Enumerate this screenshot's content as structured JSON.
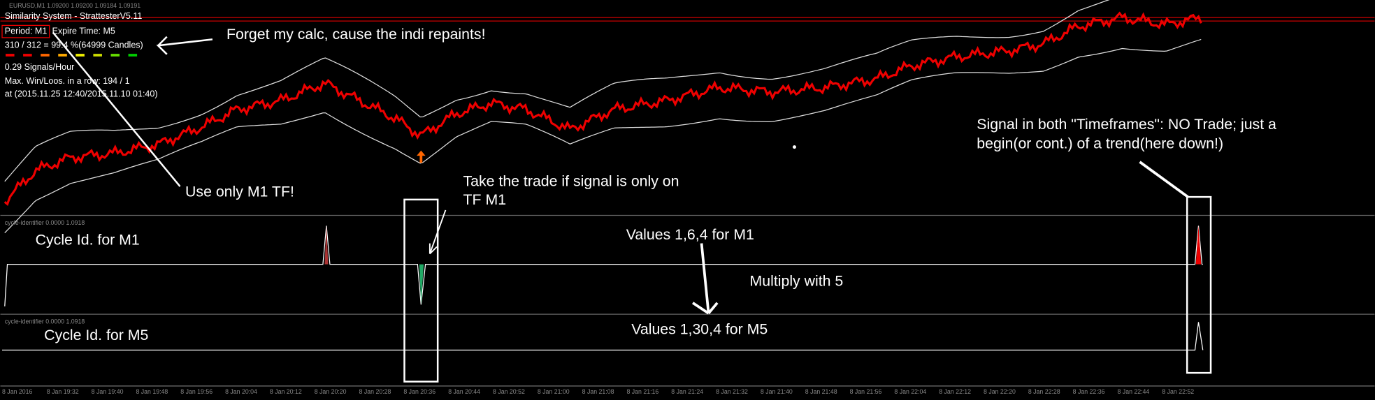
{
  "header": {
    "symbol": "EURUSD,M1  1.09200 1.09200 1.09184 1.09191"
  },
  "info_panel": {
    "title": "Similarity System - StrattesterV5.11",
    "period": "Period: M1",
    "expire": "Expire Time: M5",
    "ratio": "310 / 312 = 99.4 %(64999 Candles)",
    "signals": "0.29 Signals/Hour",
    "streak": "Max. Win/Loos. in a row: 194 / 1",
    "range": "at  (2015.11.25 12:40/2015.11.10 01:40)"
  },
  "annotations": {
    "repaint": "Forget my calc, cause the indi repaints!",
    "use_m1": "Use only M1 TF!",
    "take_trade": [
      "Take the trade if signal is only on",
      "TF M1"
    ],
    "both_signal": [
      "Signal in both \"Timeframes\": NO Trade; just a",
      "begin(or cont.) of a trend(here down!)"
    ],
    "cycle_m1": "Cycle Id. for M1",
    "values_m1": "Values 1,6,4 for M1",
    "multiply": "Multiply with 5",
    "cycle_m5": "Cycle Id. for M5",
    "values_m5": "Values 1,30,4 for M5"
  },
  "subwindows": [
    "cycle-identifier 0.0000 1.0918",
    "cycle-identifier 0.0000 1.0918"
  ],
  "time_axis": [
    "8 Jan 2016",
    "8 Jan 19:32",
    "8 Jan 19:40",
    "8 Jan 19:48",
    "8 Jan 19:56",
    "8 Jan 20:04",
    "8 Jan 20:12",
    "8 Jan 20:20",
    "8 Jan 20:28",
    "8 Jan 20:36",
    "8 Jan 20:44",
    "8 Jan 20:52",
    "8 Jan 21:00",
    "8 Jan 21:08",
    "8 Jan 21:16",
    "8 Jan 21:24",
    "8 Jan 21:32",
    "8 Jan 21:40",
    "8 Jan 21:48",
    "8 Jan 21:56",
    "8 Jan 22:04",
    "8 Jan 22:12",
    "8 Jan 22:20",
    "8 Jan 22:28",
    "8 Jan 22:36",
    "8 Jan 22:44",
    "8 Jan 22:52"
  ]
}
